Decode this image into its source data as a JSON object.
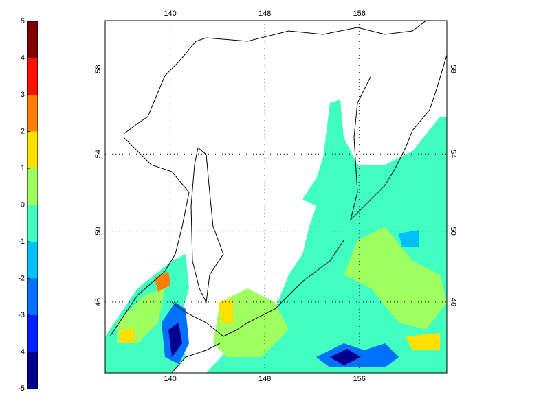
{
  "colorbar": {
    "ticks": [
      -5,
      -4,
      -3,
      -2,
      -1,
      0,
      1,
      2,
      3,
      4,
      5
    ],
    "limits": [
      -5,
      5
    ],
    "colors": [
      "#00008f",
      "#0020ff",
      "#0070ff",
      "#00c0ff",
      "#40ffc0",
      "#a0ff60",
      "#ffe000",
      "#ff8000",
      "#ff1000",
      "#800000"
    ]
  },
  "map": {
    "lon_ticks": [
      140,
      148,
      156
    ],
    "lat_ticks": [
      46,
      50,
      54,
      58
    ],
    "lon_limits": [
      134.5,
      163.4
    ],
    "lat_limits": [
      41.7,
      60.1
    ]
  }
}
